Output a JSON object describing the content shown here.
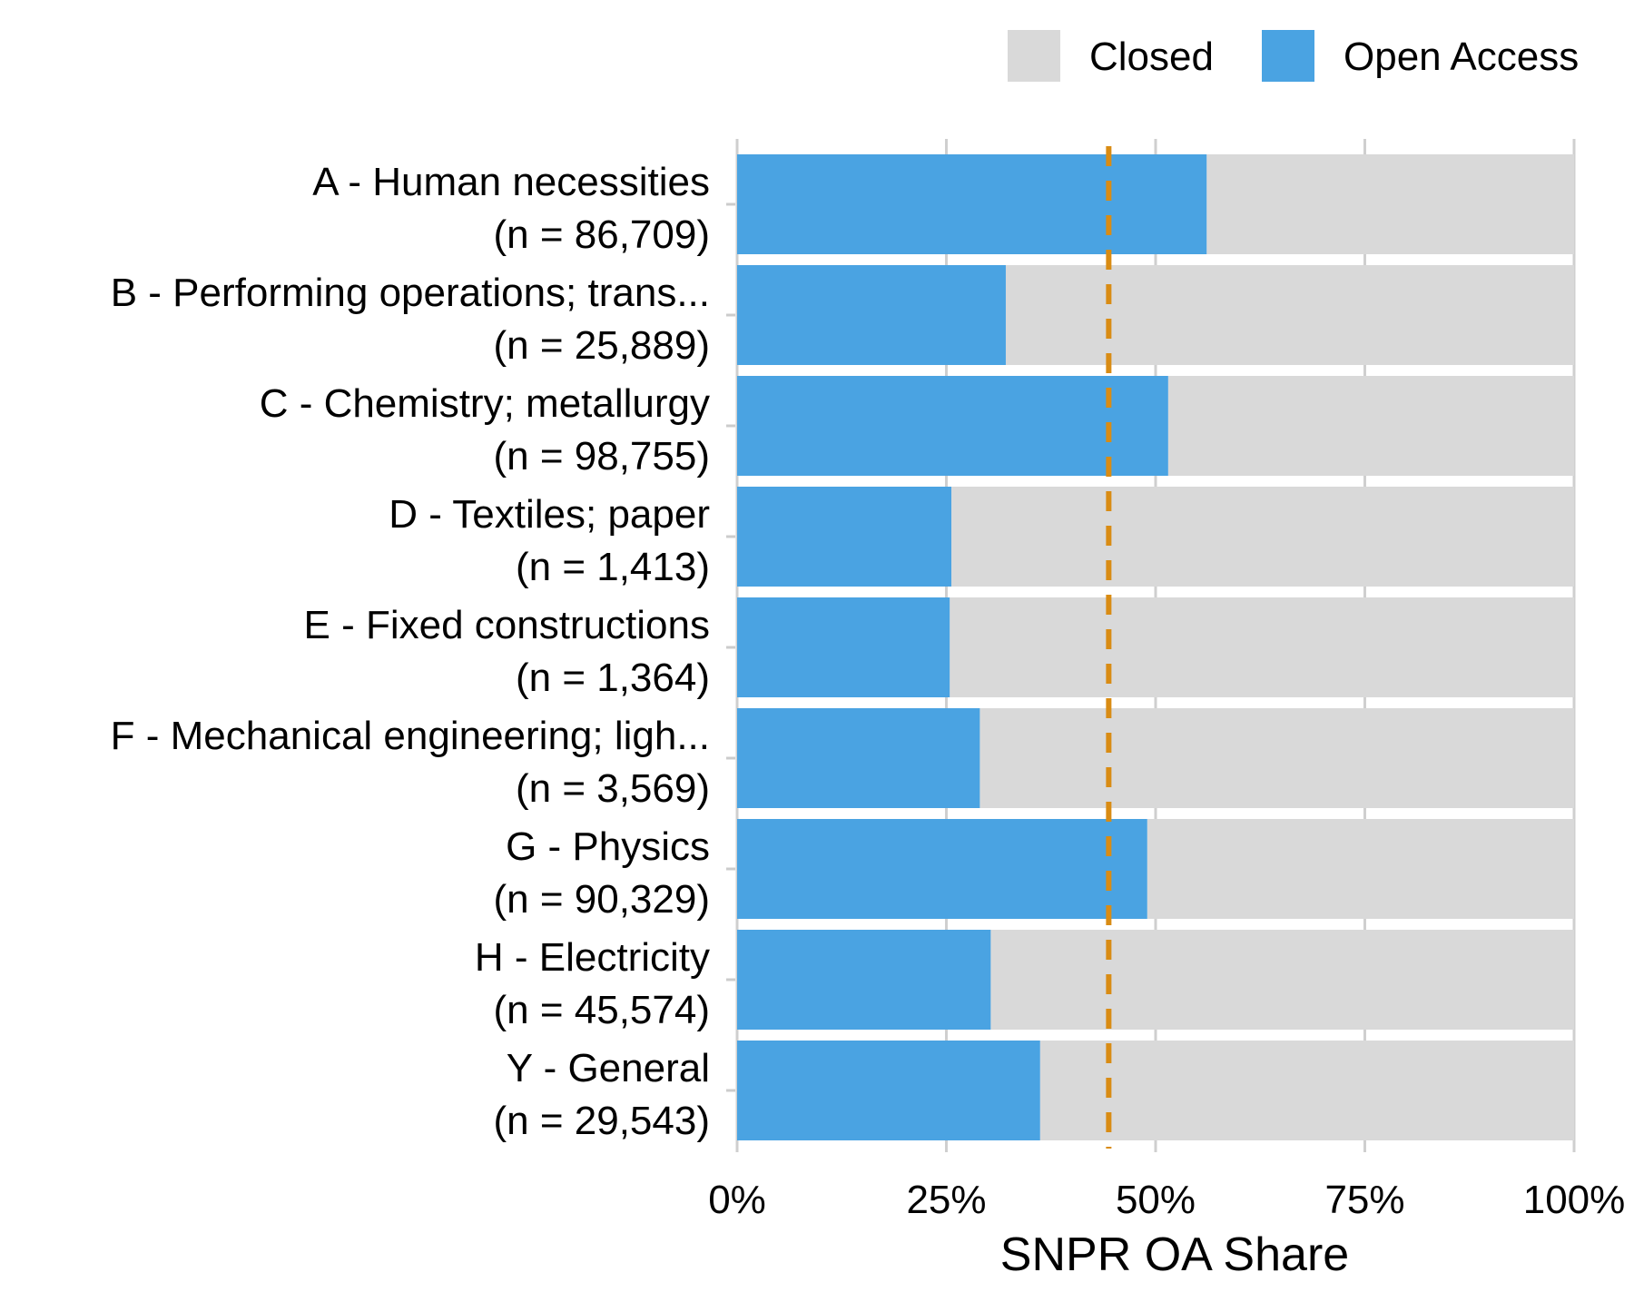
{
  "chart_data": {
    "type": "bar",
    "orientation": "horizontal",
    "stacked": true,
    "percent_stacked": true,
    "categories": [
      "A - Human necessities",
      "B - Performing operations; trans...",
      "C - Chemistry; metallurgy",
      "D - Textiles; paper",
      "E - Fixed constructions",
      "F - Mechanical engineering; ligh...",
      "G - Physics",
      "H - Electricity",
      "Y - General"
    ],
    "category_counts": [
      "(n = 86,709)",
      "(n = 25,889)",
      "(n = 98,755)",
      "(n = 1,413)",
      "(n = 1,364)",
      "(n = 3,569)",
      "(n = 90,329)",
      "(n = 45,574)",
      "(n = 29,543)"
    ],
    "series": [
      {
        "name": "Open Access",
        "color": "#4aa3e2",
        "values": [
          56.1,
          32.1,
          51.5,
          25.6,
          25.4,
          29.0,
          49.0,
          30.3,
          36.2
        ]
      },
      {
        "name": "Closed",
        "color": "#d9d9d9",
        "values": [
          43.9,
          67.9,
          48.5,
          74.4,
          74.6,
          71.0,
          51.0,
          69.7,
          63.8
        ]
      }
    ],
    "reference_line": {
      "value": 44.4,
      "color": "#d98c14",
      "style": "dashed"
    },
    "xlabel": "SNPR OA Share",
    "ylabel": "",
    "xlim": [
      0,
      100
    ],
    "x_ticks": [
      0,
      25,
      50,
      75,
      100
    ],
    "x_tick_labels": [
      "0%",
      "25%",
      "50%",
      "75%",
      "100%"
    ],
    "grid": "vertical",
    "legend": {
      "position": "top-right",
      "entries": [
        "Closed",
        "Open Access"
      ]
    }
  }
}
